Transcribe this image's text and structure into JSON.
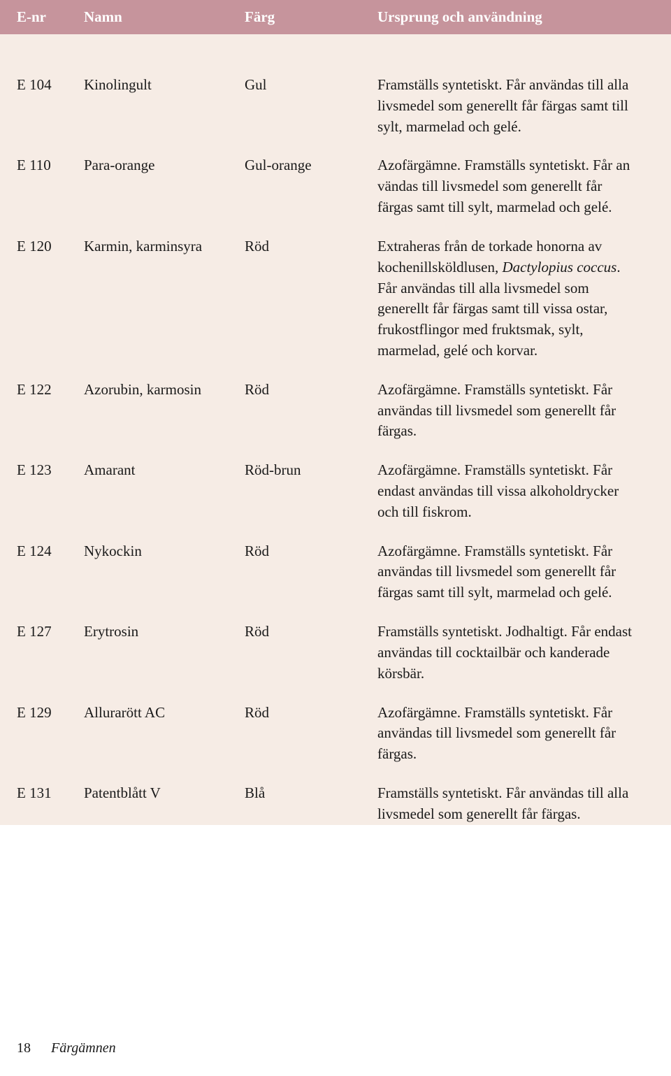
{
  "colors": {
    "header_bg": "#c6949c",
    "header_text": "#ffffff",
    "body_bg": "#f6ece5",
    "text": "#1a1a1a"
  },
  "header": {
    "enr": "E-nr",
    "namn": "Namn",
    "farg": "Färg",
    "desc": "Ursprung och användning"
  },
  "rows": [
    {
      "enr": "E 104",
      "namn": "Kinolingult",
      "farg": "Gul",
      "desc": "Framställs syntetiskt. Får användas till alla livsmedel som generellt får färgas samt till sylt, marmelad och gelé."
    },
    {
      "enr": "E 110",
      "namn": "Para-orange",
      "farg": "Gul-orange",
      "desc": "Azofärgämne. Framställs syntetiskt. Får an  vändas till livsmedel som generellt får färgas samt till sylt, marmelad och gelé."
    },
    {
      "enr": "E 120",
      "namn": "Karmin, karminsyra",
      "farg": "Röd",
      "desc_pre": "Extraheras från de torkade honorna av kochenillsköldlusen, ",
      "desc_italic": "Dactylopius coccus",
      "desc_post": ". Får användas till alla livsmedel som generellt får färgas samt till vissa ostar, frukostflingor med fruktsmak, sylt, marmelad, gelé och korvar."
    },
    {
      "enr": "E 122",
      "namn": "Azorubin, karmosin",
      "farg": "Röd",
      "desc": "Azofärgämne. Framställs syntetiskt. Får användas till livsmedel som generellt får färgas."
    },
    {
      "enr": "E 123",
      "namn": "Amarant",
      "farg": "Röd-brun",
      "desc": "Azofärgämne. Framställs syntetiskt. Får endast användas till vissa alkoholdrycker och till fiskrom."
    },
    {
      "enr": "E 124",
      "namn": "Nykockin",
      "farg": "Röd",
      "desc": "Azofärgämne. Framställs syntetiskt. Får användas till livsmedel som generellt får färgas samt till sylt, marmelad och gelé."
    },
    {
      "enr": "E 127",
      "namn": "Erytrosin",
      "farg": "Röd",
      "desc": "Framställs syntetiskt. Jodhaltigt. Får endast användas till cocktailbär och kanderade körsbär."
    },
    {
      "enr": "E 129",
      "namn": "Allurarött AC",
      "farg": "Röd",
      "desc": "Azofärgämne. Framställs syntetiskt. Får användas till livsmedel som generellt får färgas."
    },
    {
      "enr": "E 131",
      "namn": "Patentblått V",
      "farg": "Blå",
      "desc": "Framställs syntetiskt. Får användas till alla livsmedel som generellt får färgas."
    }
  ],
  "footer": {
    "page": "18",
    "section": "Färgämnen"
  }
}
